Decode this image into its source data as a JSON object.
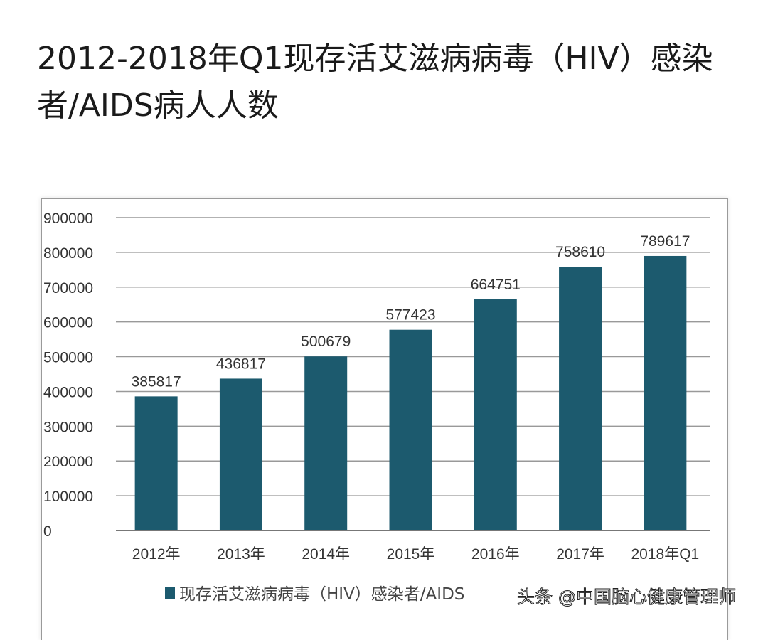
{
  "chart_data": {
    "type": "bar",
    "title": "2012-2018年Q1现存活艾滋病病毒（HIV）感染者/AIDS病人人数",
    "categories": [
      "2012年",
      "2013年",
      "2014年",
      "2015年",
      "2016年",
      "2017年",
      "2018年Q1"
    ],
    "values": [
      385817,
      436817,
      500679,
      577423,
      664751,
      758610,
      789617
    ],
    "series": [
      {
        "name": "现存活艾滋病病毒（HIV）感染者/AIDS",
        "values": [
          385817,
          436817,
          500679,
          577423,
          664751,
          758610,
          789617
        ]
      }
    ],
    "ylim": [
      0,
      900000
    ],
    "yticks": [
      0,
      100000,
      200000,
      300000,
      400000,
      500000,
      600000,
      700000,
      800000,
      900000
    ],
    "xlabel": "",
    "ylabel": "",
    "grid": true,
    "legend": "bottom",
    "bar_color": "#1c5a6e"
  },
  "watermark": "头条 @中国脑心健康管理师"
}
